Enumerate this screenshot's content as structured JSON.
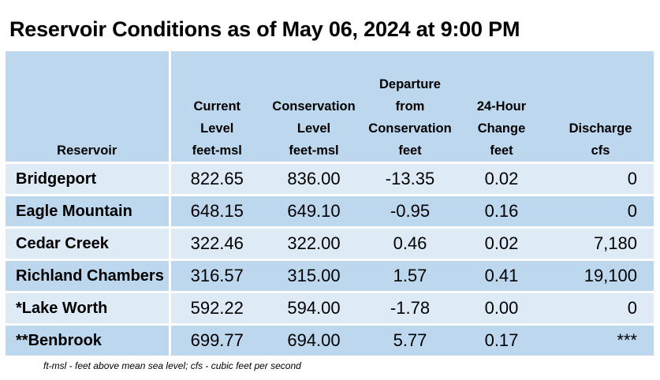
{
  "title": "Reservoir Conditions as of May 06, 2024 at 9:00 PM",
  "columns": [
    {
      "lines": [
        "Reservoir"
      ]
    },
    {
      "lines": [
        "Current",
        "Level",
        "feet-msl"
      ]
    },
    {
      "lines": [
        "Conservation",
        "Level",
        "feet-msl"
      ]
    },
    {
      "lines": [
        "Departure",
        "from",
        "Conservation",
        "feet"
      ]
    },
    {
      "lines": [
        "24-Hour",
        "Change",
        "feet"
      ]
    },
    {
      "lines": [
        "Discharge",
        "cfs"
      ]
    }
  ],
  "rows": [
    {
      "reservoir": "Bridgeport",
      "current": "822.65",
      "conservation": "836.00",
      "departure": "-13.35",
      "change": "0.02",
      "discharge": "0"
    },
    {
      "reservoir": "Eagle Mountain",
      "current": "648.15",
      "conservation": "649.10",
      "departure": "-0.95",
      "change": "0.16",
      "discharge": "0"
    },
    {
      "reservoir": "Cedar Creek",
      "current": "322.46",
      "conservation": "322.00",
      "departure": "0.46",
      "change": "0.02",
      "discharge": "7,180"
    },
    {
      "reservoir": "Richland Chambers",
      "current": "316.57",
      "conservation": "315.00",
      "departure": "1.57",
      "change": "0.41",
      "discharge": "19,100"
    },
    {
      "reservoir": "*Lake Worth",
      "current": "592.22",
      "conservation": "594.00",
      "departure": "-1.78",
      "change": "0.00",
      "discharge": "0"
    },
    {
      "reservoir": "**Benbrook",
      "current": "699.77",
      "conservation": "694.00",
      "departure": "5.77",
      "change": "0.17",
      "discharge": "***"
    }
  ],
  "footnote": "ft-msl - feet above mean sea level; cfs - cubic feet per second"
}
